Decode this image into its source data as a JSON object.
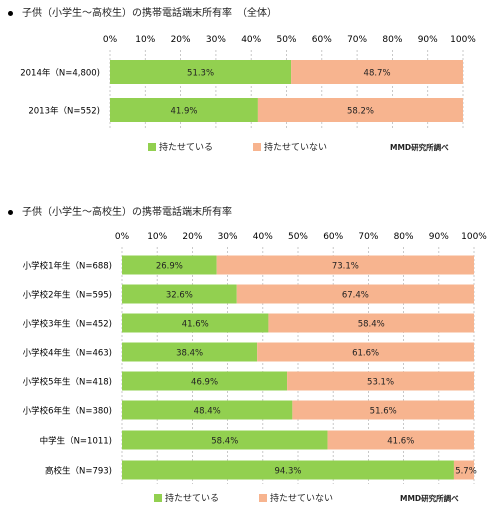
{
  "colors": {
    "have": "#92d050",
    "not_have": "#f7b48f",
    "grid": "#bbbbbb"
  },
  "chart_data": [
    {
      "type": "bar",
      "stacked": true,
      "orientation": "horizontal",
      "title": "子供（小学生～高校生）の携帯電話端末所有率　（全体）",
      "ticks": [
        "0%",
        "10%",
        "20%",
        "30%",
        "40%",
        "50%",
        "60%",
        "70%",
        "80%",
        "90%",
        "100%"
      ],
      "xlim": [
        0,
        100
      ],
      "categories": [
        "2014年（N=4,800)",
        "2013年（N=552)"
      ],
      "series": [
        {
          "name": "持たせている",
          "values": [
            51.3,
            41.9
          ],
          "labels": [
            "51.3%",
            "41.9%"
          ]
        },
        {
          "name": "持たせていない",
          "values": [
            48.7,
            58.2
          ],
          "labels": [
            "48.7%",
            "58.2%"
          ]
        }
      ],
      "source": "MMD研究所調べ"
    },
    {
      "type": "bar",
      "stacked": true,
      "orientation": "horizontal",
      "title": "子供（小学生～高校生）の携帯電話端末所有率",
      "ticks": [
        "0%",
        "10%",
        "20%",
        "30%",
        "40%",
        "50%",
        "60%",
        "70%",
        "80%",
        "90%",
        "100%"
      ],
      "xlim": [
        0,
        100
      ],
      "categories": [
        "小学校1年生（N=688)",
        "小学校2年生（N=595)",
        "小学校3年生（N=452)",
        "小学校4年生（N=463)",
        "小学校5年生（N=418)",
        "小学校6年生（N=380)",
        "中学生（N=1011)",
        "高校生（N=793)"
      ],
      "series": [
        {
          "name": "持たせている",
          "values": [
            26.9,
            32.6,
            41.6,
            38.4,
            46.9,
            48.4,
            58.4,
            94.3
          ],
          "labels": [
            "26.9%",
            "32.6%",
            "41.6%",
            "38.4%",
            "46.9%",
            "48.4%",
            "58.4%",
            "94.3%"
          ]
        },
        {
          "name": "持たせていない",
          "values": [
            73.1,
            67.4,
            58.4,
            61.6,
            53.1,
            51.6,
            41.6,
            5.7
          ],
          "labels": [
            "73.1%",
            "67.4%",
            "58.4%",
            "61.6%",
            "53.1%",
            "51.6%",
            "41.6%",
            "5.7%"
          ]
        }
      ],
      "source": "MMD研究所調べ"
    }
  ]
}
